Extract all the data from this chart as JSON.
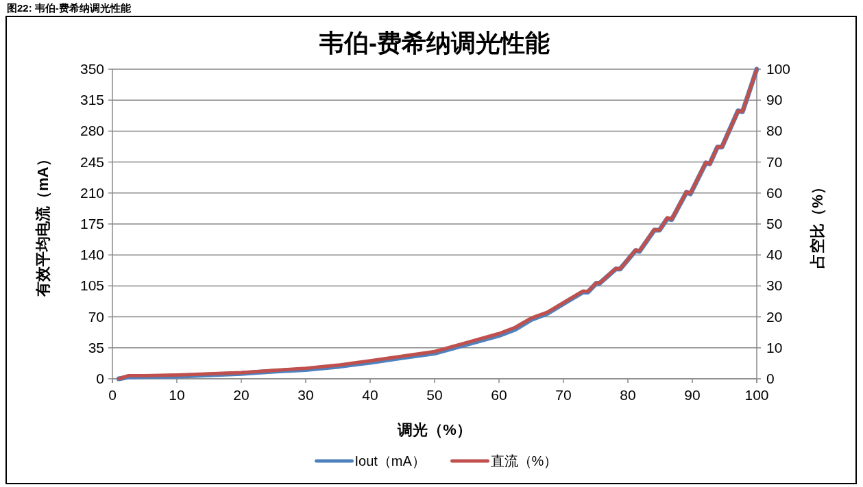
{
  "chart_data": {
    "type": "line",
    "title": "韦伯-费希纳调光性能",
    "xlabel": "调光（%）",
    "ylabel": "有效平均电流（mA）",
    "y2label": "占空比（%）",
    "annotations": [
      "图22:      韦伯-费希纳调光性能"
    ],
    "x": [
      1,
      2.5,
      5,
      10,
      15,
      20,
      25,
      30,
      35,
      40,
      45,
      50,
      55,
      60,
      62.5,
      65,
      67.5,
      70,
      73,
      73.8,
      75.1,
      75.6,
      78.1,
      78.8,
      81.2,
      81.8,
      84.1,
      84.9,
      86.1,
      86.8,
      89.1,
      89.7,
      92.1,
      92.7,
      93.9,
      94.6,
      97.1,
      97.8,
      100
    ],
    "series": [
      {
        "name": "Iout（mA）",
        "color": "#4f81bd",
        "values": [
          0,
          2,
          2.5,
          3,
          4.5,
          6,
          8.5,
          10.5,
          14,
          18.5,
          24,
          29,
          39,
          49,
          56,
          67,
          74,
          85,
          98,
          98,
          108,
          108,
          124,
          124,
          145,
          144,
          168,
          168,
          181,
          180,
          211,
          209,
          244,
          243,
          262,
          262,
          303,
          302,
          350
        ]
      },
      {
        "name": "直流（%）",
        "color": "#c0504d",
        "axis": "y2",
        "values": [
          0,
          1.0,
          1.0,
          1.2,
          1.6,
          2.0,
          2.7,
          3.4,
          4.4,
          5.8,
          7.3,
          8.8,
          11.7,
          14.6,
          16.6,
          19.6,
          21.5,
          24.6,
          28.3,
          28.2,
          31.0,
          30.9,
          35.6,
          35.5,
          41.6,
          41.3,
          48.2,
          48.0,
          52.0,
          51.6,
          60.4,
          59.9,
          69.9,
          69.4,
          74.9,
          74.9,
          86.5,
          86.4,
          100
        ]
      }
    ],
    "xlim": [
      0,
      100
    ],
    "xticks": [
      0,
      10,
      20,
      30,
      40,
      50,
      60,
      70,
      80,
      90,
      100
    ],
    "ylim": [
      0,
      350
    ],
    "yticks": [
      0,
      35,
      70,
      105,
      140,
      175,
      210,
      245,
      280,
      315,
      350
    ],
    "y2lim": [
      0,
      100
    ],
    "y2ticks": [
      0,
      10,
      20,
      30,
      40,
      50,
      60,
      70,
      80,
      90,
      100
    ],
    "grid": "y",
    "legend": "bottom",
    "marker": "none",
    "line_style": "solid"
  }
}
